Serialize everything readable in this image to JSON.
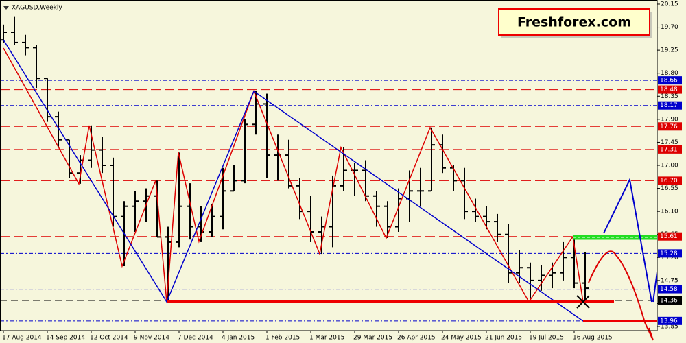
{
  "chart_data": {
    "type": "ohlc",
    "title": "XAGUSD,Weekly",
    "brand": "Freshforex.com",
    "color": "#000000",
    "categories": [
      "17 Aug 2014",
      null,
      null,
      null,
      "14 Sep 2014",
      null,
      null,
      null,
      "12 Oct 2014",
      null,
      null,
      null,
      "9 Nov 2014",
      null,
      null,
      null,
      "7 Dec 2014",
      null,
      null,
      null,
      "4 Jan 2015",
      null,
      null,
      null,
      "1 Feb 2015",
      null,
      null,
      null,
      "1 Mar 2015",
      null,
      null,
      null,
      "29 Mar 2015",
      null,
      null,
      null,
      "26 Apr 2015",
      null,
      null,
      null,
      "24 May 2015",
      null,
      null,
      null,
      "21 Jun 2015",
      null,
      null,
      null,
      "19 Jul 2015",
      null,
      null,
      null,
      "16 Aug 2015",
      null
    ],
    "open": [
      19.45,
      19.6,
      19.4,
      19.3,
      18.7,
      17.95,
      17.5,
      16.85,
      17.1,
      17.3,
      17.0,
      16.0,
      16.2,
      16.3,
      16.4,
      15.6,
      15.5,
      16.2,
      15.8,
      15.7,
      16.0,
      16.5,
      16.7,
      17.8,
      18.2,
      17.2,
      17.2,
      16.6,
      16.1,
      15.7,
      15.8,
      16.6,
      16.9,
      16.9,
      16.4,
      16.2,
      15.8,
      16.35,
      16.5,
      16.5,
      17.4,
      16.95,
      16.7,
      16.1,
      16.0,
      15.9,
      15.65,
      14.9,
      15.0,
      14.75,
      14.85,
      14.9,
      15.2,
      14.7
    ],
    "high": [
      19.75,
      19.9,
      19.55,
      19.35,
      18.7,
      18.05,
      17.5,
      17.2,
      17.78,
      17.55,
      17.15,
      16.3,
      16.5,
      16.55,
      16.7,
      15.8,
      17.25,
      16.65,
      16.2,
      16.25,
      16.95,
      17.0,
      17.9,
      18.45,
      18.4,
      17.6,
      17.5,
      16.75,
      16.4,
      16.0,
      16.8,
      17.35,
      17.05,
      17.1,
      16.5,
      16.3,
      16.55,
      16.9,
      16.95,
      17.74,
      17.6,
      17.0,
      16.95,
      16.35,
      16.2,
      16.05,
      15.85,
      15.35,
      15.1,
      15.05,
      15.1,
      15.5,
      15.61,
      15.3
    ],
    "low": [
      19.4,
      19.35,
      19.15,
      18.5,
      17.85,
      17.35,
      16.75,
      16.64,
      16.95,
      16.85,
      15.8,
      15.03,
      15.7,
      15.9,
      15.6,
      14.34,
      15.4,
      15.55,
      15.5,
      15.6,
      15.75,
      16.5,
      16.65,
      17.6,
      16.75,
      16.7,
      16.55,
      15.95,
      15.5,
      15.27,
      15.4,
      16.5,
      16.4,
      16.3,
      15.8,
      15.58,
      15.7,
      15.9,
      16.2,
      16.5,
      16.85,
      16.5,
      15.95,
      15.9,
      15.75,
      15.5,
      14.7,
      14.7,
      14.34,
      14.55,
      14.6,
      14.75,
      14.6,
      14.34
    ],
    "close": [
      19.6,
      19.4,
      19.3,
      18.7,
      17.95,
      17.5,
      16.85,
      17.1,
      17.3,
      17.0,
      16.0,
      16.2,
      16.3,
      16.4,
      15.6,
      15.5,
      16.2,
      15.8,
      15.7,
      16.0,
      16.5,
      16.7,
      17.8,
      18.2,
      17.2,
      17.2,
      16.6,
      16.1,
      15.7,
      15.8,
      16.6,
      16.9,
      16.9,
      16.4,
      16.2,
      15.8,
      16.35,
      16.5,
      16.5,
      17.4,
      16.95,
      16.7,
      16.1,
      16.0,
      15.9,
      15.65,
      14.9,
      15.0,
      14.75,
      14.85,
      14.9,
      15.2,
      14.7,
      14.6
    ],
    "ylim": [
      13.77,
      20.23
    ],
    "yticks": [
      20.15,
      {
        "value": 19.7,
        "label": "19.70"
      },
      19.25,
      {
        "value": 18.8,
        "label": "18.80"
      },
      18.35,
      {
        "value": 17.9,
        "label": "17.90"
      },
      17.45,
      {
        "value": 17,
        "label": "17.00"
      },
      16.55,
      {
        "value": 16.1,
        "label": "16.10"
      },
      15.65,
      {
        "value": 15.2,
        "label": "15.20"
      },
      14.75,
      {
        "value": 14.3,
        "label": "14.30"
      },
      13.85
    ],
    "levels": [
      {
        "value": 18.66,
        "color": "#0000cc"
      },
      {
        "value": 18.48,
        "color": "#dd0000"
      },
      {
        "value": 18.17,
        "color": "#0000cc"
      },
      {
        "value": 17.76,
        "color": "#dd0000"
      },
      {
        "value": 17.31,
        "color": "#dd0000"
      },
      {
        "value": 16.7,
        "label": "16.70",
        "color": "#dd0000"
      },
      {
        "value": 15.61,
        "color": "#dd0000"
      },
      {
        "value": 15.28,
        "color": "#0000cc"
      },
      {
        "value": 14.58,
        "color": "#0000cc"
      },
      {
        "value": 14.36,
        "color": "#000000"
      },
      {
        "value": 13.96,
        "color": "#0000cc"
      }
    ]
  }
}
